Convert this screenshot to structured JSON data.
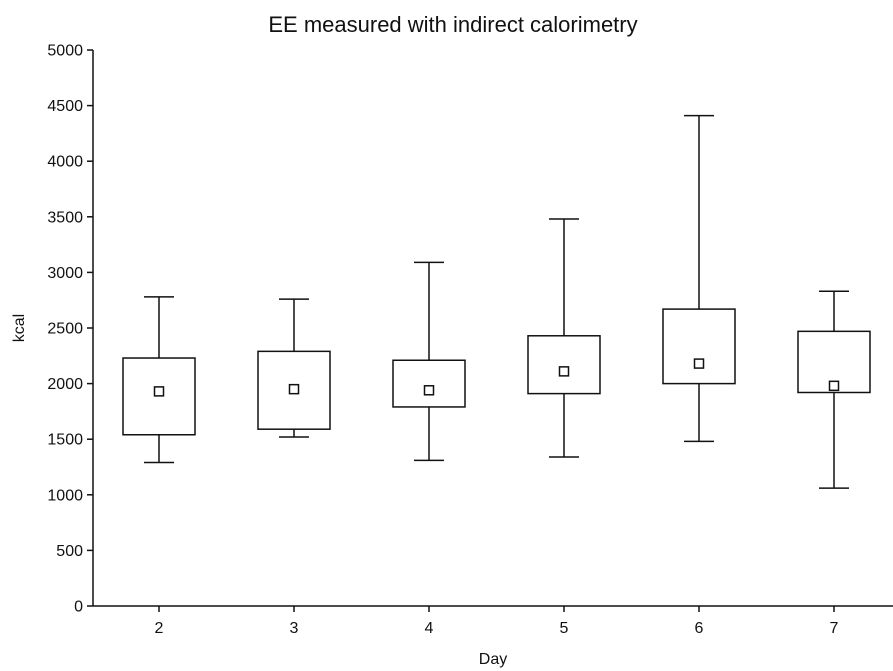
{
  "chart_data": {
    "type": "box",
    "title": "EE measured with indirect calorimetry",
    "xlabel": "Day",
    "ylabel": "kcal",
    "ylim": [
      0,
      5000
    ],
    "yticks": [
      0,
      500,
      1000,
      1500,
      2000,
      2500,
      3000,
      3500,
      4000,
      4500,
      5000
    ],
    "categories": [
      "2",
      "3",
      "4",
      "5",
      "6",
      "7"
    ],
    "boxes": [
      {
        "category": "2",
        "whisker_low": 1290,
        "box_low": 1540,
        "center": 1930,
        "box_high": 2230,
        "whisker_high": 2780
      },
      {
        "category": "3",
        "whisker_low": 1520,
        "box_low": 1590,
        "center": 1950,
        "box_high": 2290,
        "whisker_high": 2760
      },
      {
        "category": "4",
        "whisker_low": 1310,
        "box_low": 1790,
        "center": 1940,
        "box_high": 2210,
        "whisker_high": 3090
      },
      {
        "category": "5",
        "whisker_low": 1340,
        "box_low": 1910,
        "center": 2110,
        "box_high": 2430,
        "whisker_high": 3480
      },
      {
        "category": "6",
        "whisker_low": 1480,
        "box_low": 2000,
        "center": 2180,
        "box_high": 2670,
        "whisker_high": 4410
      },
      {
        "category": "7",
        "whisker_low": 1060,
        "box_low": 1920,
        "center": 1980,
        "box_high": 2470,
        "whisker_high": 2830
      }
    ],
    "grid": false,
    "legend": "none",
    "colors": {
      "stroke": "#111111",
      "box_fill": "#ffffff"
    }
  }
}
